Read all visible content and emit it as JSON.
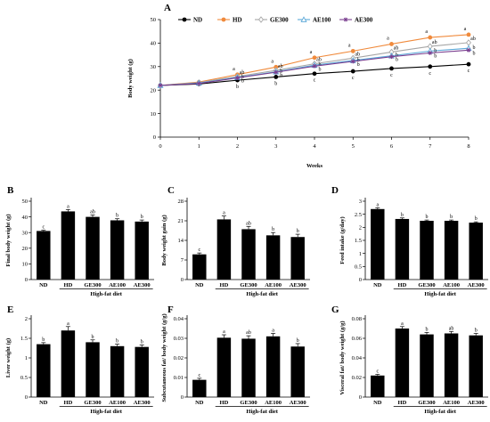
{
  "chart_data": [
    {
      "panel": "A",
      "type": "line",
      "xlabel": "Weeks",
      "ylabel": "Body weight (g)",
      "x": [
        0,
        1,
        2,
        3,
        4,
        5,
        6,
        7,
        8
      ],
      "xlim": [
        0,
        8
      ],
      "ylim": [
        0,
        50
      ],
      "yticks": [
        0,
        10,
        20,
        30,
        40,
        50
      ],
      "legend": "top",
      "series": [
        {
          "name": "ND",
          "color": "#000000",
          "marker": "circle",
          "values": [
            22,
            22.6,
            24.2,
            25.6,
            27.0,
            28.0,
            29.2,
            30.0,
            31.0
          ],
          "letters": [
            "",
            "",
            "b",
            "b",
            "c",
            "c",
            "c",
            "c",
            "c"
          ]
        },
        {
          "name": "HD",
          "color": "#f08a3c",
          "marker": "circle",
          "values": [
            22,
            23.4,
            26.6,
            29.8,
            33.8,
            36.6,
            39.6,
            42.4,
            43.6
          ],
          "letters": [
            "",
            "",
            "a",
            "a",
            "a",
            "a",
            "a",
            "a",
            "a"
          ]
        },
        {
          "name": "GE300",
          "color": "#a6a6a6",
          "marker": "diamond",
          "values": [
            22,
            23.2,
            25.8,
            28.4,
            31.2,
            33.6,
            36.2,
            38.6,
            40.2
          ],
          "letters": [
            "",
            "",
            "ab",
            "ab",
            "ab",
            "ab",
            "ab",
            "ab",
            "ab"
          ]
        },
        {
          "name": "AE100",
          "color": "#5ba8d8",
          "marker": "triangle",
          "values": [
            22,
            23.0,
            25.4,
            27.8,
            30.6,
            32.6,
            34.6,
            36.6,
            37.8
          ],
          "letters": [
            "",
            "",
            "b",
            "b",
            "b",
            "b",
            "b",
            "b",
            "b"
          ]
        },
        {
          "name": "AE300",
          "color": "#7a3e8f",
          "marker": "star",
          "values": [
            22,
            22.8,
            25.2,
            27.6,
            30.2,
            32.2,
            34.2,
            35.8,
            37.0
          ],
          "letters": [
            "",
            "",
            "b",
            "b",
            "b",
            "b",
            "b",
            "b",
            "b"
          ]
        }
      ]
    },
    {
      "panel": "B",
      "type": "bar",
      "ylabel": "Final body weight (g)",
      "categories": [
        "ND",
        "HD",
        "GE300",
        "AE100",
        "AE300"
      ],
      "values": [
        31,
        43.5,
        40,
        37.8,
        37
      ],
      "errors": [
        0.5,
        1.2,
        1.2,
        1.0,
        1.0
      ],
      "letters": [
        "c",
        "a",
        "ab",
        "b",
        "b"
      ],
      "ylim": [
        0,
        50
      ],
      "yticks": [
        "0",
        "10",
        "20",
        "30",
        "40",
        "50"
      ],
      "group_label": "High-fat diet"
    },
    {
      "panel": "C",
      "type": "bar",
      "ylabel": "Body weight gain (g)",
      "categories": [
        "ND",
        "HD",
        "GE300",
        "AE100",
        "AE300"
      ],
      "values": [
        9,
        21.5,
        18,
        15.8,
        15.2
      ],
      "errors": [
        0.5,
        1.2,
        1.0,
        1.0,
        1.0
      ],
      "letters": [
        "c",
        "a",
        "ab",
        "b",
        "b"
      ],
      "ylim": [
        0,
        28
      ],
      "yticks": [
        "0",
        "7",
        "14",
        "21",
        "28"
      ],
      "group_label": "High-fat diet"
    },
    {
      "panel": "D",
      "type": "bar",
      "ylabel": "Feed intake (g/day)",
      "categories": [
        "ND",
        "HD",
        "GE300",
        "AE100",
        "AE300"
      ],
      "values": [
        2.7,
        2.32,
        2.25,
        2.25,
        2.18
      ],
      "errors": [
        0.05,
        0.04,
        0.03,
        0.03,
        0.03
      ],
      "letters": [
        "a",
        "b",
        "b",
        "b",
        "b"
      ],
      "ylim": [
        0,
        3
      ],
      "yticks": [
        "0",
        "0.5",
        "1",
        "1.5",
        "2",
        "2.5",
        "3"
      ],
      "group_label": "High-fat diet"
    },
    {
      "panel": "E",
      "type": "bar",
      "ylabel": "Liver weight (g)",
      "categories": [
        "ND",
        "HD",
        "GE300",
        "AE100",
        "AE300"
      ],
      "values": [
        1.35,
        1.7,
        1.4,
        1.3,
        1.28
      ],
      "errors": [
        0.04,
        0.1,
        0.06,
        0.05,
        0.05
      ],
      "letters": [
        "b",
        "a",
        "b",
        "b",
        "b"
      ],
      "ylim": [
        0,
        2
      ],
      "yticks": [
        "0",
        "0.5",
        "1",
        "1.5",
        "2"
      ],
      "group_label": "High-fat diet"
    },
    {
      "panel": "F",
      "type": "bar",
      "ylabel": "Subcutaneous fat/ body weight (g/g)",
      "categories": [
        "ND",
        "HD",
        "GE300",
        "AE100",
        "AE300"
      ],
      "values": [
        0.0088,
        0.0303,
        0.0298,
        0.031,
        0.0258
      ],
      "errors": [
        0.0008,
        0.0015,
        0.0015,
        0.0015,
        0.0015
      ],
      "letters": [
        "c",
        "a",
        "ab",
        "a",
        "b"
      ],
      "ylim": [
        0,
        0.04
      ],
      "yticks": [
        "0",
        "0.01",
        "0.02",
        "0.03",
        "0.04"
      ],
      "group_label": "High-fat diet"
    },
    {
      "panel": "G",
      "type": "bar",
      "ylabel": "Visceral fat/ body weight (g/g)",
      "categories": [
        "ND",
        "HD",
        "GE300",
        "AE100",
        "AE300"
      ],
      "values": [
        0.022,
        0.07,
        0.064,
        0.065,
        0.063
      ],
      "errors": [
        0.0012,
        0.002,
        0.002,
        0.002,
        0.002
      ],
      "letters": [
        "c",
        "a",
        "b",
        "ab",
        "b"
      ],
      "ylim": [
        0,
        0.08
      ],
      "yticks": [
        "0",
        "0.02",
        "0.04",
        "0.06",
        "0.08"
      ],
      "group_label": "High-fat diet"
    }
  ]
}
